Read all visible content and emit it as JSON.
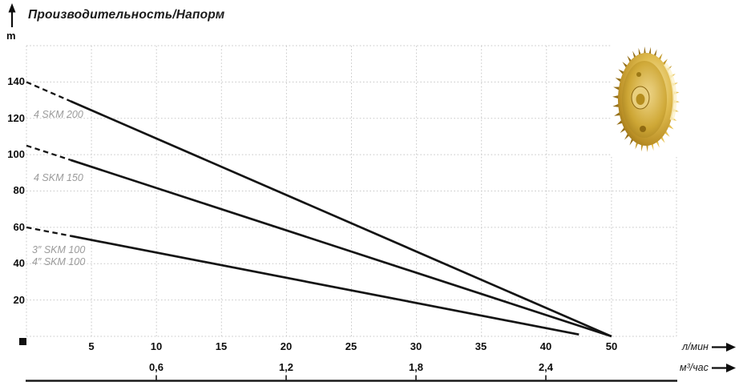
{
  "title": "Производительность/Напорм",
  "colors": {
    "curve": "#141414",
    "grid": "#c8c8c8",
    "curve_label_gray": "#9b9b9b",
    "text": "#0d0d0d",
    "impeller_gold": "#c79a2a"
  },
  "chart_data": {
    "type": "line",
    "title": "Производительность/Напорм",
    "ylabel": "m",
    "xlabel_primary": "л/мин",
    "xlabel_secondary": "м³/час",
    "x_range": [
      0,
      50
    ],
    "y_range": [
      0,
      160
    ],
    "grid": true,
    "layout_note": "tick labeled 50 sits at the 45 grid position, as in source image; curves start dashed near x=0",
    "x_ticks": [
      {
        "label": "5",
        "pos": 5
      },
      {
        "label": "10",
        "pos": 10
      },
      {
        "label": "15",
        "pos": 15
      },
      {
        "label": "20",
        "pos": 20
      },
      {
        "label": "25",
        "pos": 25
      },
      {
        "label": "30",
        "pos": 30
      },
      {
        "label": "35",
        "pos": 35
      },
      {
        "label": "40",
        "pos": 40
      },
      {
        "label": "50",
        "pos": 45
      }
    ],
    "x_ticks_secondary": [
      {
        "label": "0,6",
        "pos": 10
      },
      {
        "label": "1,2",
        "pos": 20
      },
      {
        "label": "1,8",
        "pos": 30
      },
      {
        "label": "2,4",
        "pos": 40
      }
    ],
    "y_ticks": [
      {
        "label": "20",
        "pos": 20
      },
      {
        "label": "40",
        "pos": 40
      },
      {
        "label": "60",
        "pos": 60
      },
      {
        "label": "80",
        "pos": 80
      },
      {
        "label": "100",
        "pos": 100
      },
      {
        "label": "120",
        "pos": 120
      },
      {
        "label": "140",
        "pos": 140
      }
    ],
    "series": [
      {
        "name": "4 SKM 200",
        "points": [
          [
            0,
            140
          ],
          [
            45,
            0
          ]
        ],
        "dashed_until_x": 3.4
      },
      {
        "name": "4 SKM 150",
        "points": [
          [
            0,
            105
          ],
          [
            45,
            0
          ]
        ],
        "dashed_until_x": 3.4
      },
      {
        "name": "3″/4″ SKM 100",
        "points": [
          [
            0,
            60
          ],
          [
            42.5,
            1
          ]
        ],
        "dashed_until_x": 3.4
      }
    ],
    "curve_labels": [
      {
        "text": "4 SKM 200"
      },
      {
        "text": "4 SKM 150"
      },
      {
        "text": "3″ SKM 100"
      },
      {
        "text": "4″ SKM 100"
      }
    ],
    "legend": "none"
  },
  "image": {
    "name": "brass pump impeller photo"
  }
}
